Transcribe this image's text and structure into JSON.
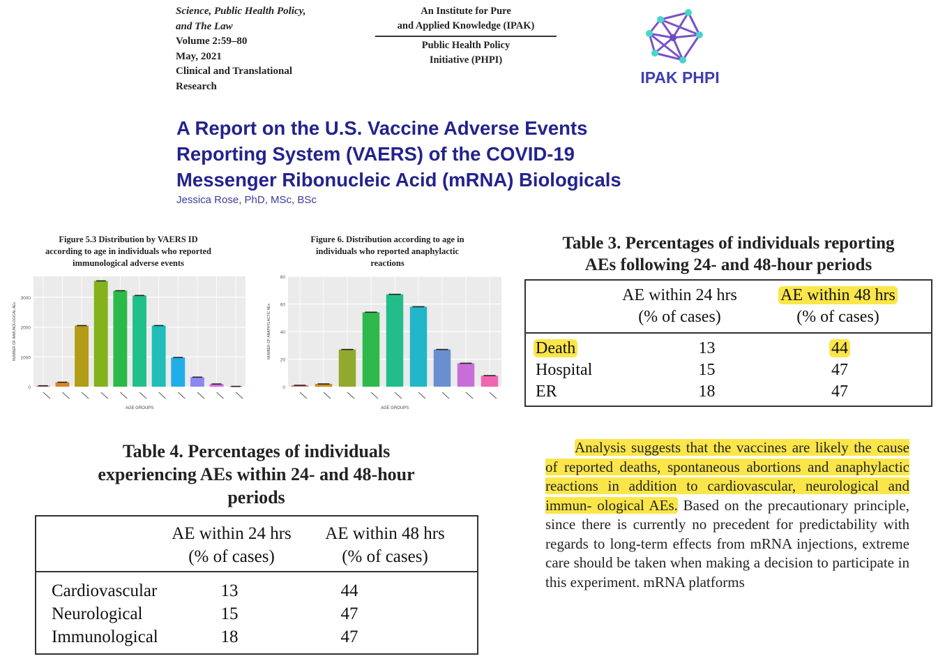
{
  "header": {
    "journal_lines": [
      "Science, Public Health Policy,",
      "and The Law",
      "Volume 2:59–80",
      "May, 2021",
      "Clinical and Translational",
      "Research"
    ],
    "institute_lines": [
      "An Institute for Pure",
      "and Applied Knowledge (IPAK)"
    ],
    "initiative_lines": [
      "Public Health Policy",
      "Initiative (PHPI)"
    ],
    "logo_text": "IPAK PHPI"
  },
  "paper": {
    "title_lines": [
      "A Report on the U.S. Vaccine Adverse Events",
      "Reporting System (VAERS) of the COVID-19",
      "Messenger Ribonucleic Acid (mRNA) Biologicals"
    ],
    "author": "Jessica Rose, PhD, MSc, BSc"
  },
  "figures": {
    "fig53_caption": [
      "Figure 5.3 Distribution by VAERS ID",
      "according to age in individuals who reported",
      "immunological adverse events"
    ],
    "fig6_caption": [
      "Figure 6. Distribution according to age in",
      "individuals who reported anaphylactic",
      "reactions"
    ]
  },
  "chart_data": [
    {
      "type": "bar",
      "title": "Figure 5.3 Distribution by VAERS ID according to age in individuals who reported immunological adverse events",
      "xlabel": "AGE GROUPS",
      "ylabel": "NUMBER OF IMMUNOLOGICAL AEs",
      "ylim": [
        0,
        3700
      ],
      "yticks": [
        0,
        1000,
        2000,
        3000
      ],
      "values": [
        30,
        150,
        2050,
        3550,
        3220,
        3060,
        2050,
        980,
        320,
        90,
        10
      ],
      "colors": [
        "#f1736a",
        "#d8862a",
        "#b39c17",
        "#84b21b",
        "#2bba47",
        "#21bf8a",
        "#20bdb9",
        "#21aee8",
        "#8d87f1",
        "#d66be6",
        "#f36bc1"
      ],
      "grid": true
    },
    {
      "type": "bar",
      "title": "Figure 6. Distribution according to age in individuals who reported anaphylactic reactions",
      "xlabel": "AGE GROUPS",
      "ylabel": "NUMBER OF ANAPHYLACTIC AEs",
      "ylim": [
        0,
        80
      ],
      "yticks": [
        0,
        20,
        40,
        60,
        80
      ],
      "values": [
        1,
        2,
        27,
        54,
        67,
        58,
        27,
        17,
        8
      ],
      "colors": [
        "#f1736a",
        "#cb8f1c",
        "#91a92c",
        "#2fb84c",
        "#23bd8c",
        "#22b6c9",
        "#6a8fd0",
        "#c96ed9",
        "#ef67b2"
      ],
      "grid": true
    }
  ],
  "table3": {
    "caption_lines": [
      "Table 3.  Percentages of individuals reporting",
      "AEs following 24- and 48-hour periods"
    ],
    "col1": [
      "AE within 24 hrs",
      "(% of cases)"
    ],
    "col2": [
      "AE within 48 hrs",
      "(% of cases)"
    ],
    "rows": [
      {
        "label": "Death",
        "v24": "13",
        "v48": "44"
      },
      {
        "label": "Hospital",
        "v24": "15",
        "v48": "47"
      },
      {
        "label": "ER",
        "v24": "18",
        "v48": "47"
      }
    ]
  },
  "table4": {
    "caption_lines": [
      "Table 4.  Percentages of individuals",
      "experiencing AEs within 24- and 48-hour",
      "periods"
    ],
    "col1": [
      "AE within 24 hrs",
      "(% of cases)"
    ],
    "col2": [
      "AE within 48 hrs",
      "(% of cases)"
    ],
    "rows": [
      {
        "label": "Cardiovascular",
        "v24": "13",
        "v48": "44"
      },
      {
        "label": "Neurological",
        "v24": "15",
        "v48": "47"
      },
      {
        "label": "Immunological",
        "v24": "18",
        "v48": "47"
      }
    ]
  },
  "analysis": {
    "highlighted": "Analysis suggests that the vaccines are likely the cause of reported deaths, spontaneous abortions and anaphylactic reactions in addition to cardiovascular, neurological and immun- ological AEs.",
    "rest": " Based on the precautionary principle, since there is currently no precedent for predictability with regards to long-term effects from mRNA injections, extreme care should be taken when making a decision to participate in this experiment. mRNA platforms"
  },
  "colors": {
    "title_blue": "#23238c",
    "highlight": "#fbe64a",
    "logo_purple": "#6b4cc4"
  }
}
